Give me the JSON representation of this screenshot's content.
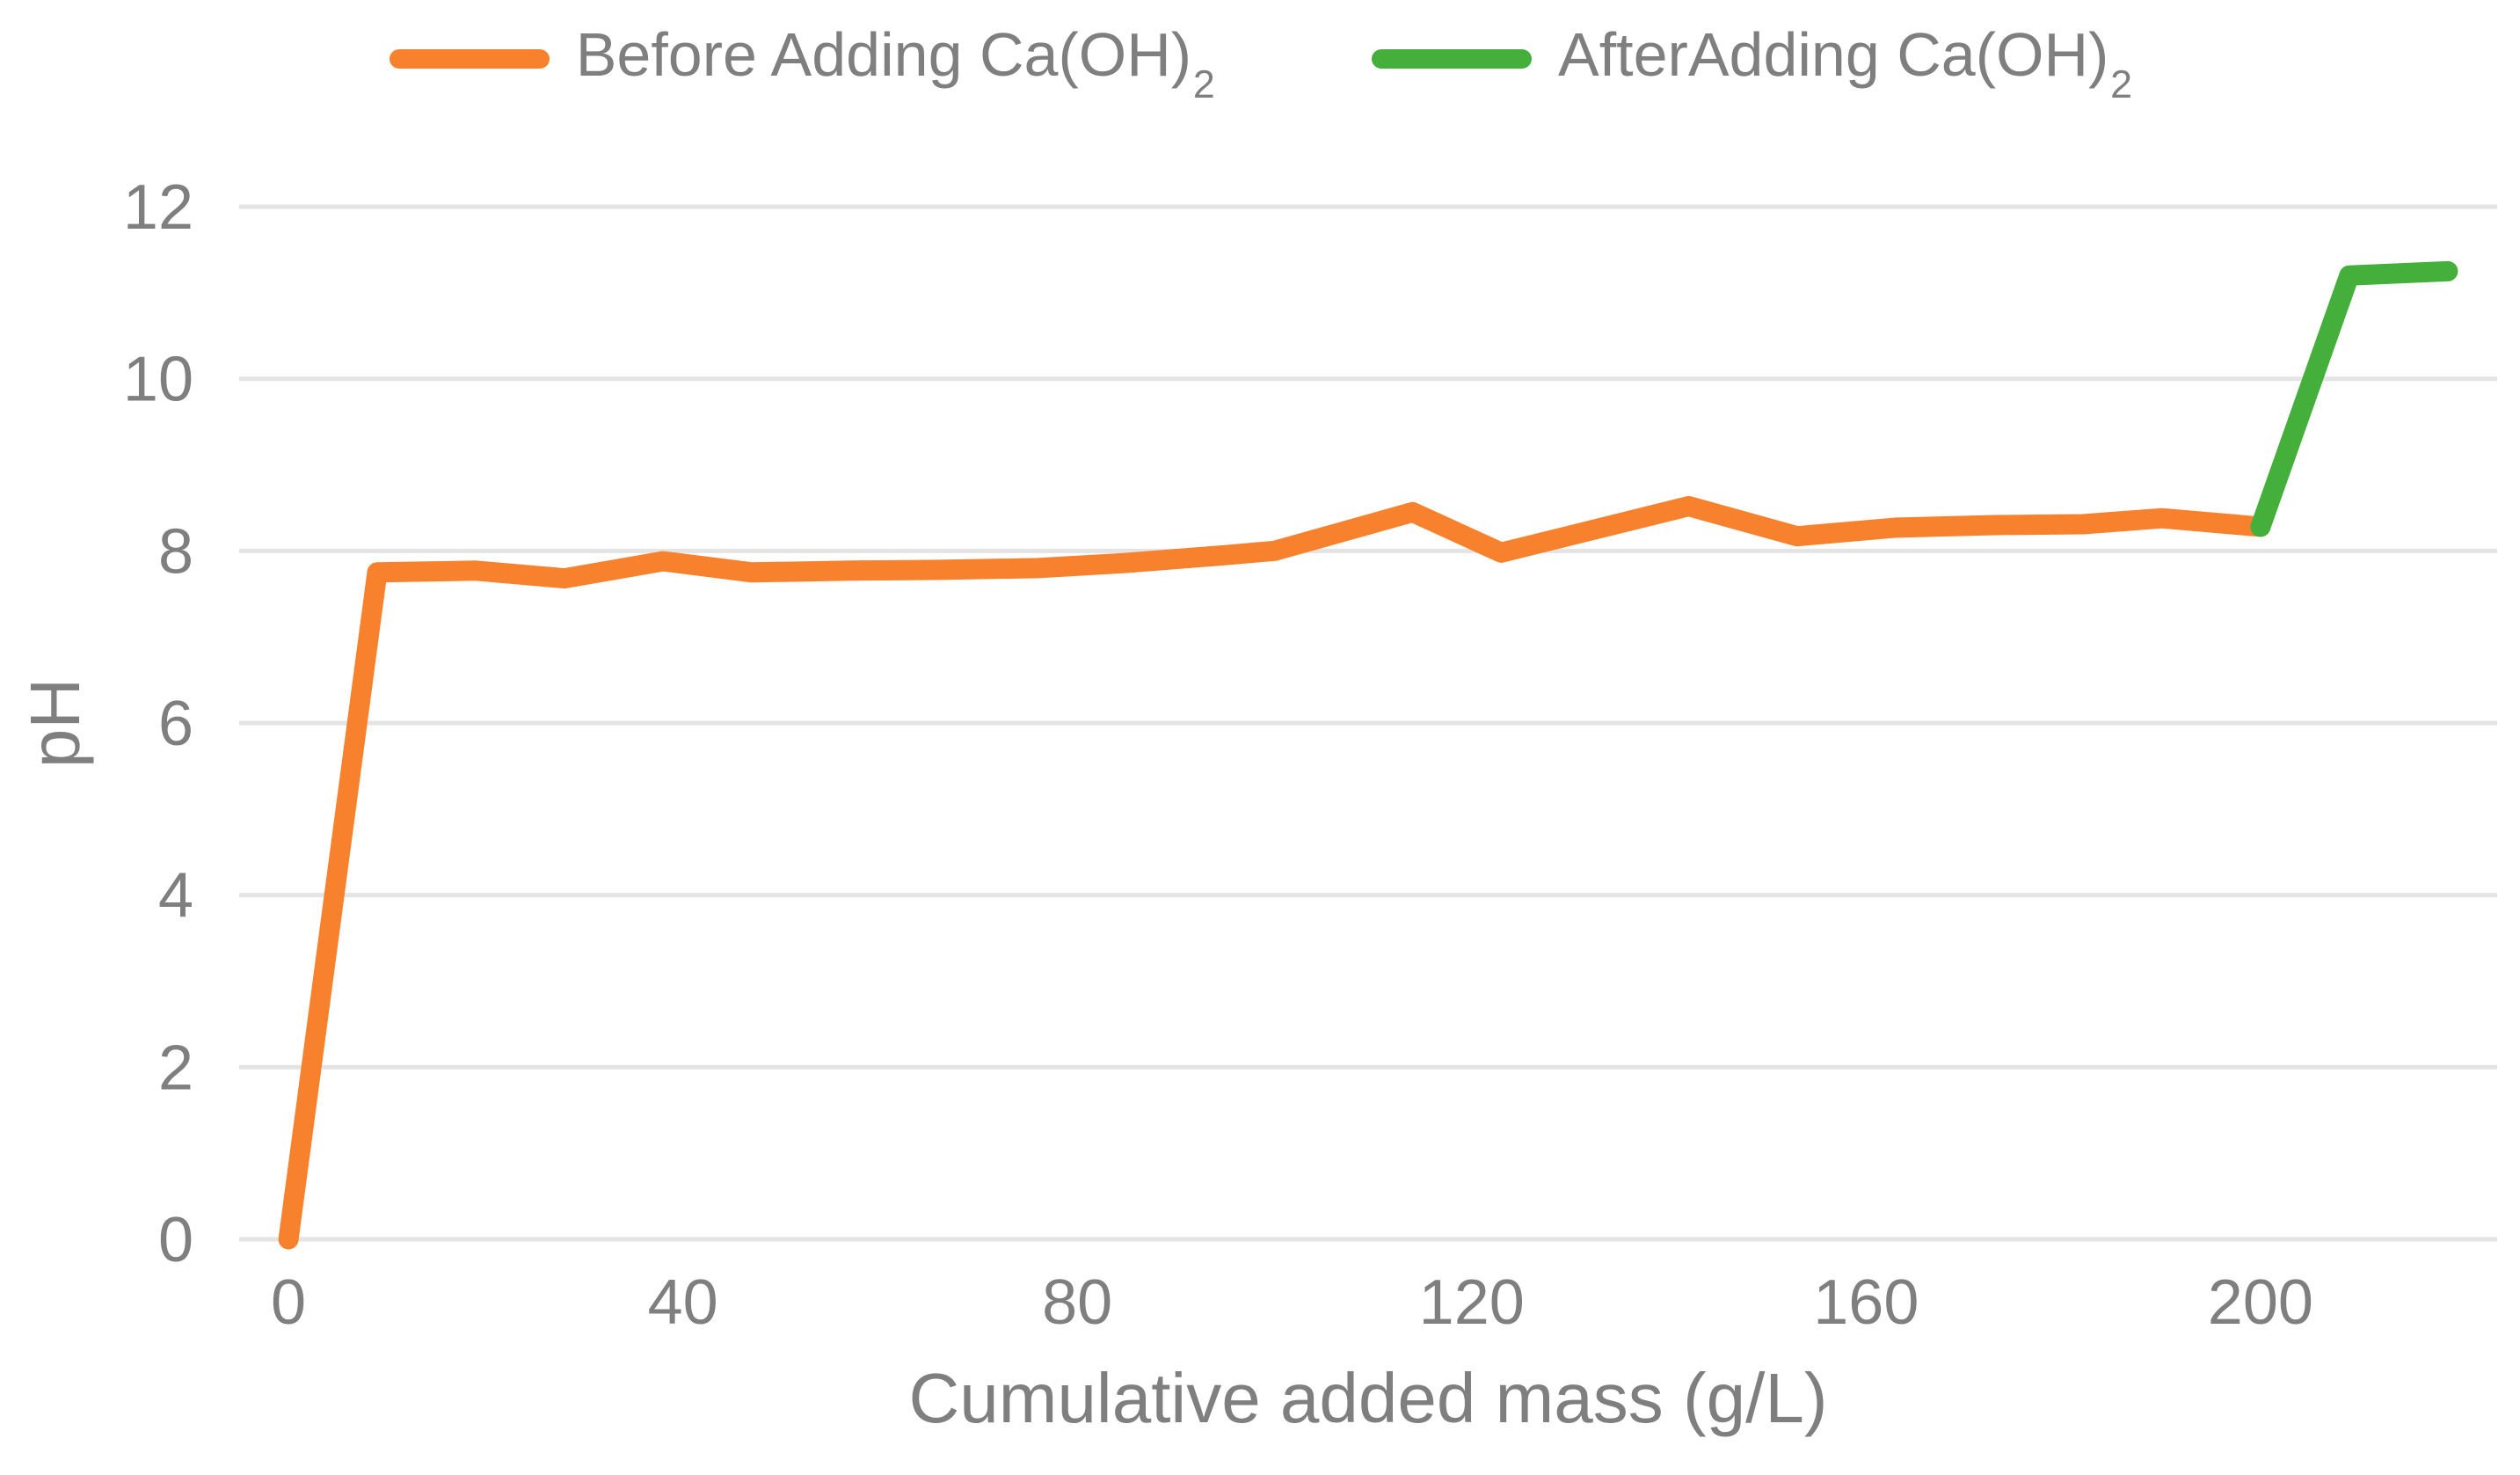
{
  "chart_data": {
    "type": "line",
    "title": "",
    "xlabel": "Cumulative added mass (g/L)",
    "ylabel": "pH",
    "x_ticks": [
      0,
      40,
      80,
      120,
      160,
      200
    ],
    "y_ticks": [
      0,
      2,
      4,
      6,
      8,
      10,
      12
    ],
    "xlim": [
      -5,
      224
    ],
    "ylim": [
      0,
      12
    ],
    "grid": "horizontal",
    "legend_position": "top",
    "colors": {
      "before_series": "#F7812D",
      "after_series": "#45AF3B",
      "gridline": "#E4E4E4",
      "text": "#7F7F7F"
    },
    "series": [
      {
        "name_main": "Before Adding Ca(OH)",
        "name_sub": "2",
        "color": "#F7812D",
        "points": [
          [
            0,
            0
          ],
          [
            9,
            7.75
          ],
          [
            19,
            7.77
          ],
          [
            28,
            7.68
          ],
          [
            38,
            7.88
          ],
          [
            47,
            7.75
          ],
          [
            57,
            7.77
          ],
          [
            66,
            7.78
          ],
          [
            76,
            7.8
          ],
          [
            85,
            7.86
          ],
          [
            95,
            7.95
          ],
          [
            100,
            8.0
          ],
          [
            114,
            8.45
          ],
          [
            123,
            7.98
          ],
          [
            142,
            8.52
          ],
          [
            153,
            8.17
          ],
          [
            163,
            8.27
          ],
          [
            173,
            8.3
          ],
          [
            182,
            8.31
          ],
          [
            190,
            8.38
          ],
          [
            200,
            8.28
          ]
        ]
      },
      {
        "name_main": "AfterAdding Ca(OH)",
        "name_sub": "2",
        "color": "#45AF3B",
        "points": [
          [
            200,
            8.28
          ],
          [
            209,
            11.2
          ],
          [
            219,
            11.25
          ]
        ]
      }
    ]
  }
}
